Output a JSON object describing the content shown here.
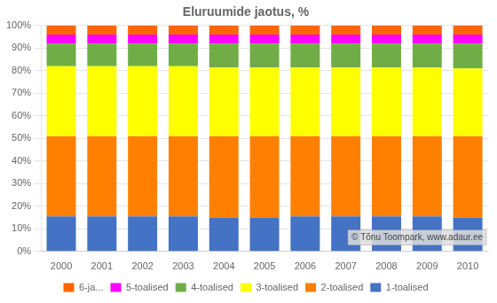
{
  "chart_data": {
    "type": "bar",
    "title": "Eluruumide jaotus, %",
    "categories": [
      "2000",
      "2001",
      "2002",
      "2003",
      "2004",
      "2005",
      "2006",
      "2007",
      "2008",
      "2009",
      "2010"
    ],
    "series": [
      {
        "name": "1-toalised",
        "color": "#4472C4",
        "values": [
          15.5,
          15.5,
          15.5,
          15.5,
          15.0,
          15.0,
          15.5,
          15.5,
          15.5,
          15.5,
          15.0
        ]
      },
      {
        "name": "2-toalised",
        "color": "#FF8000",
        "values": [
          35.5,
          35.5,
          35.5,
          35.5,
          36.0,
          36.0,
          35.5,
          35.5,
          35.5,
          35.5,
          36.0
        ]
      },
      {
        "name": "3-toalised",
        "color": "#FFFF00",
        "values": [
          31.0,
          31.0,
          31.0,
          31.0,
          30.5,
          30.5,
          30.5,
          30.5,
          30.5,
          30.5,
          30.0
        ]
      },
      {
        "name": "4-toalised",
        "color": "#70AD47",
        "values": [
          10.0,
          10.0,
          10.0,
          10.0,
          10.5,
          10.5,
          10.5,
          10.5,
          10.5,
          10.5,
          11.0
        ]
      },
      {
        "name": "5-toalised",
        "color": "#FF00FF",
        "values": [
          4.0,
          4.0,
          4.0,
          4.0,
          4.0,
          4.0,
          4.0,
          4.0,
          4.0,
          4.0,
          4.0
        ]
      },
      {
        "name": "6-ja...",
        "color": "#FF6600",
        "values": [
          4.0,
          4.0,
          4.0,
          4.0,
          4.0,
          4.0,
          4.0,
          4.0,
          4.0,
          4.0,
          4.0
        ]
      }
    ],
    "stacked": true,
    "ylim": [
      0,
      100
    ],
    "yticks": [
      {
        "value": 0,
        "label": "0%"
      },
      {
        "value": 10,
        "label": "10%"
      },
      {
        "value": 20,
        "label": "20%"
      },
      {
        "value": 30,
        "label": "30%"
      },
      {
        "value": 40,
        "label": "40%"
      },
      {
        "value": 50,
        "label": "50%"
      },
      {
        "value": 60,
        "label": "60%"
      },
      {
        "value": 70,
        "label": "70%"
      },
      {
        "value": 80,
        "label": "80%"
      },
      {
        "value": 90,
        "label": "90%"
      },
      {
        "value": 100,
        "label": "100%"
      }
    ],
    "grid": true,
    "legend": "bottom",
    "annotations": [
      "© Tõnu Toompark, www.adaur.ee"
    ]
  }
}
